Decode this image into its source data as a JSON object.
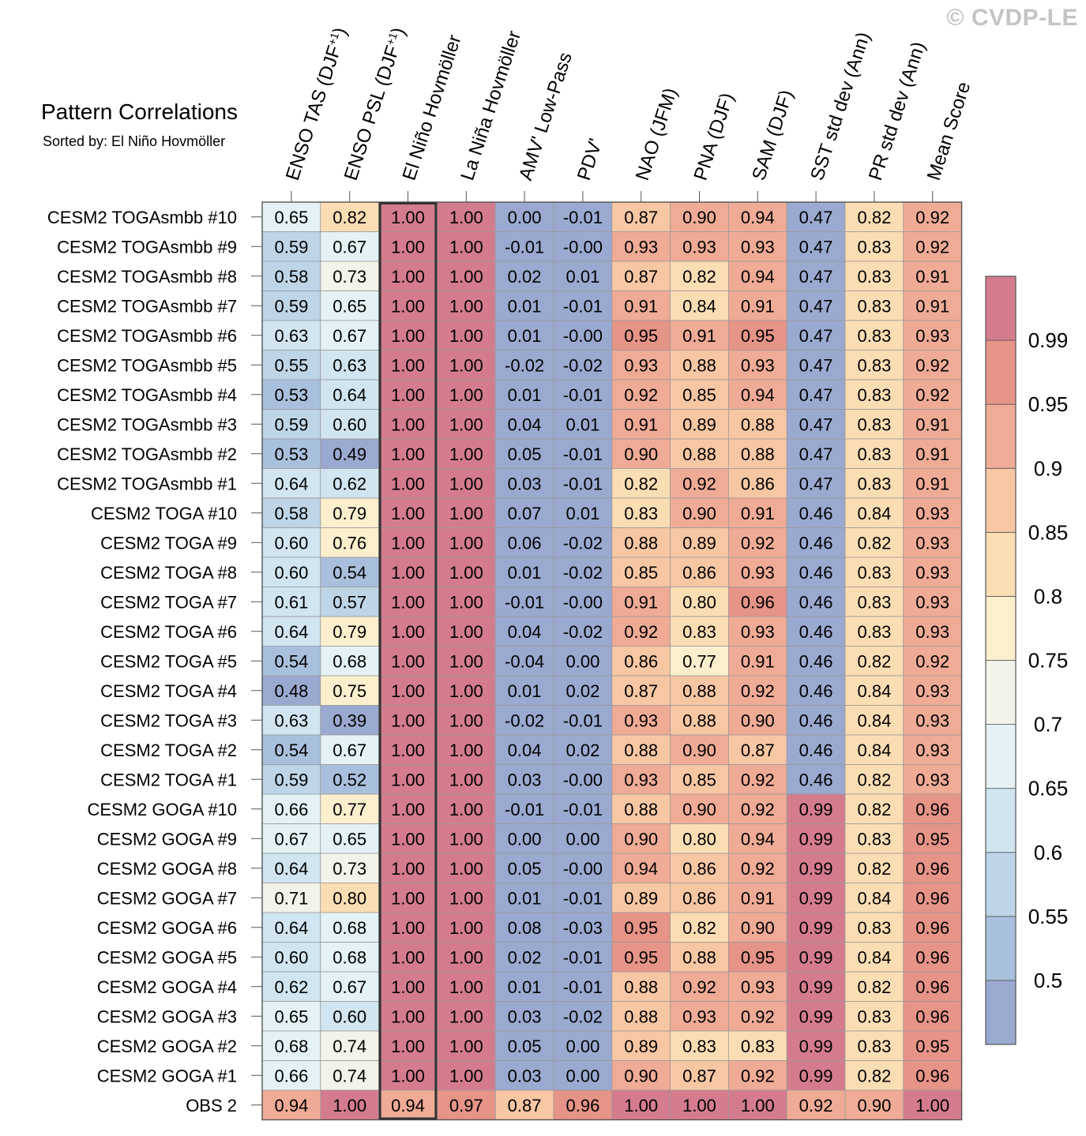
{
  "watermark": "© CVDP-LE",
  "chart_data": {
    "type": "heatmap",
    "title": "Pattern Correlations",
    "subtitle": "Sorted by: El Niño Hovmöller",
    "columns": [
      "ENSO TAS (DJF+1)",
      "ENSO PSL (DJF+1)",
      "El Niño Hovmöller",
      "La Niña Hovmöller",
      "AMV' Low-Pass",
      "PDV'",
      "NAO (JFM)",
      "PNA (DJF)",
      "SAM (DJF)",
      "SST std dev (Ann)",
      "PR std dev (Ann)",
      "Mean Score"
    ],
    "highlighted_column": "El Niño Hovmöller",
    "rows": [
      "CESM2 TOGAsmbb #10",
      "CESM2 TOGAsmbb #9",
      "CESM2 TOGAsmbb #8",
      "CESM2 TOGAsmbb #7",
      "CESM2 TOGAsmbb #6",
      "CESM2 TOGAsmbb #5",
      "CESM2 TOGAsmbb #4",
      "CESM2 TOGAsmbb #3",
      "CESM2 TOGAsmbb #2",
      "CESM2 TOGAsmbb #1",
      "CESM2 TOGA #10",
      "CESM2 TOGA #9",
      "CESM2 TOGA #8",
      "CESM2 TOGA #7",
      "CESM2 TOGA #6",
      "CESM2 TOGA #5",
      "CESM2 TOGA #4",
      "CESM2 TOGA #3",
      "CESM2 TOGA #2",
      "CESM2 TOGA #1",
      "CESM2 GOGA #10",
      "CESM2 GOGA #9",
      "CESM2 GOGA #8",
      "CESM2 GOGA #7",
      "CESM2 GOGA #6",
      "CESM2 GOGA #5",
      "CESM2 GOGA #4",
      "CESM2 GOGA #3",
      "CESM2 GOGA #2",
      "CESM2 GOGA #1",
      "OBS 2"
    ],
    "values": [
      [
        "0.65",
        "0.82",
        "1.00",
        "1.00",
        "0.00",
        "-0.01",
        "0.87",
        "0.90",
        "0.94",
        "0.47",
        "0.82",
        "0.92"
      ],
      [
        "0.59",
        "0.67",
        "1.00",
        "1.00",
        "-0.01",
        "-0.00",
        "0.93",
        "0.93",
        "0.93",
        "0.47",
        "0.83",
        "0.92"
      ],
      [
        "0.58",
        "0.73",
        "1.00",
        "1.00",
        "0.02",
        "0.01",
        "0.87",
        "0.82",
        "0.94",
        "0.47",
        "0.83",
        "0.91"
      ],
      [
        "0.59",
        "0.65",
        "1.00",
        "1.00",
        "0.01",
        "-0.01",
        "0.91",
        "0.84",
        "0.91",
        "0.47",
        "0.83",
        "0.91"
      ],
      [
        "0.63",
        "0.67",
        "1.00",
        "1.00",
        "0.01",
        "-0.00",
        "0.95",
        "0.91",
        "0.95",
        "0.47",
        "0.83",
        "0.93"
      ],
      [
        "0.55",
        "0.63",
        "1.00",
        "1.00",
        "-0.02",
        "-0.02",
        "0.93",
        "0.88",
        "0.93",
        "0.47",
        "0.83",
        "0.92"
      ],
      [
        "0.53",
        "0.64",
        "1.00",
        "1.00",
        "0.01",
        "-0.01",
        "0.92",
        "0.85",
        "0.94",
        "0.47",
        "0.83",
        "0.92"
      ],
      [
        "0.59",
        "0.60",
        "1.00",
        "1.00",
        "0.04",
        "0.01",
        "0.91",
        "0.89",
        "0.88",
        "0.47",
        "0.83",
        "0.91"
      ],
      [
        "0.53",
        "0.49",
        "1.00",
        "1.00",
        "0.05",
        "-0.01",
        "0.90",
        "0.88",
        "0.88",
        "0.47",
        "0.83",
        "0.91"
      ],
      [
        "0.64",
        "0.62",
        "1.00",
        "1.00",
        "0.03",
        "-0.01",
        "0.82",
        "0.92",
        "0.86",
        "0.47",
        "0.83",
        "0.91"
      ],
      [
        "0.58",
        "0.79",
        "1.00",
        "1.00",
        "0.07",
        "0.01",
        "0.83",
        "0.90",
        "0.91",
        "0.46",
        "0.84",
        "0.93"
      ],
      [
        "0.60",
        "0.76",
        "1.00",
        "1.00",
        "0.06",
        "-0.02",
        "0.88",
        "0.89",
        "0.92",
        "0.46",
        "0.82",
        "0.93"
      ],
      [
        "0.60",
        "0.54",
        "1.00",
        "1.00",
        "0.01",
        "-0.02",
        "0.85",
        "0.86",
        "0.93",
        "0.46",
        "0.83",
        "0.93"
      ],
      [
        "0.61",
        "0.57",
        "1.00",
        "1.00",
        "-0.01",
        "-0.00",
        "0.91",
        "0.80",
        "0.96",
        "0.46",
        "0.83",
        "0.93"
      ],
      [
        "0.64",
        "0.79",
        "1.00",
        "1.00",
        "0.04",
        "-0.02",
        "0.92",
        "0.83",
        "0.93",
        "0.46",
        "0.83",
        "0.93"
      ],
      [
        "0.54",
        "0.68",
        "1.00",
        "1.00",
        "-0.04",
        "0.00",
        "0.86",
        "0.77",
        "0.91",
        "0.46",
        "0.82",
        "0.92"
      ],
      [
        "0.48",
        "0.75",
        "1.00",
        "1.00",
        "0.01",
        "0.02",
        "0.87",
        "0.88",
        "0.92",
        "0.46",
        "0.84",
        "0.93"
      ],
      [
        "0.63",
        "0.39",
        "1.00",
        "1.00",
        "-0.02",
        "-0.01",
        "0.93",
        "0.88",
        "0.90",
        "0.46",
        "0.84",
        "0.93"
      ],
      [
        "0.54",
        "0.67",
        "1.00",
        "1.00",
        "0.04",
        "0.02",
        "0.88",
        "0.90",
        "0.87",
        "0.46",
        "0.84",
        "0.93"
      ],
      [
        "0.59",
        "0.52",
        "1.00",
        "1.00",
        "0.03",
        "-0.00",
        "0.93",
        "0.85",
        "0.92",
        "0.46",
        "0.82",
        "0.93"
      ],
      [
        "0.66",
        "0.77",
        "1.00",
        "1.00",
        "-0.01",
        "-0.01",
        "0.88",
        "0.90",
        "0.92",
        "0.99",
        "0.82",
        "0.96"
      ],
      [
        "0.67",
        "0.65",
        "1.00",
        "1.00",
        "0.00",
        "0.00",
        "0.90",
        "0.80",
        "0.94",
        "0.99",
        "0.83",
        "0.95"
      ],
      [
        "0.64",
        "0.73",
        "1.00",
        "1.00",
        "0.05",
        "-0.00",
        "0.94",
        "0.86",
        "0.92",
        "0.99",
        "0.82",
        "0.96"
      ],
      [
        "0.71",
        "0.80",
        "1.00",
        "1.00",
        "0.01",
        "-0.01",
        "0.89",
        "0.86",
        "0.91",
        "0.99",
        "0.84",
        "0.96"
      ],
      [
        "0.64",
        "0.68",
        "1.00",
        "1.00",
        "0.08",
        "-0.03",
        "0.95",
        "0.82",
        "0.90",
        "0.99",
        "0.83",
        "0.96"
      ],
      [
        "0.60",
        "0.68",
        "1.00",
        "1.00",
        "0.02",
        "-0.01",
        "0.95",
        "0.88",
        "0.95",
        "0.99",
        "0.84",
        "0.96"
      ],
      [
        "0.62",
        "0.67",
        "1.00",
        "1.00",
        "0.01",
        "-0.01",
        "0.88",
        "0.92",
        "0.93",
        "0.99",
        "0.82",
        "0.96"
      ],
      [
        "0.65",
        "0.60",
        "1.00",
        "1.00",
        "0.03",
        "-0.02",
        "0.88",
        "0.93",
        "0.92",
        "0.99",
        "0.83",
        "0.96"
      ],
      [
        "0.68",
        "0.74",
        "1.00",
        "1.00",
        "0.05",
        "0.00",
        "0.89",
        "0.83",
        "0.83",
        "0.99",
        "0.83",
        "0.95"
      ],
      [
        "0.66",
        "0.74",
        "1.00",
        "1.00",
        "0.03",
        "0.00",
        "0.90",
        "0.87",
        "0.92",
        "0.99",
        "0.82",
        "0.96"
      ],
      [
        "0.94",
        "1.00",
        "0.94",
        "0.97",
        "0.87",
        "0.96",
        "1.00",
        "1.00",
        "1.00",
        "0.92",
        "0.90",
        "1.00"
      ]
    ],
    "colorbar": {
      "levels": [
        "0.5",
        "0.55",
        "0.6",
        "0.65",
        "0.7",
        "0.75",
        "0.8",
        "0.85",
        "0.9",
        "0.95",
        "0.99"
      ],
      "colors": [
        "#9aa9d0",
        "#a9c0dc",
        "#bdd5e7",
        "#d0e5f0",
        "#e4f2f6",
        "#f3f3ea",
        "#fcefce",
        "#fbddb4",
        "#f7c6a3",
        "#efab95",
        "#e69388",
        "#d47c8e"
      ]
    }
  }
}
